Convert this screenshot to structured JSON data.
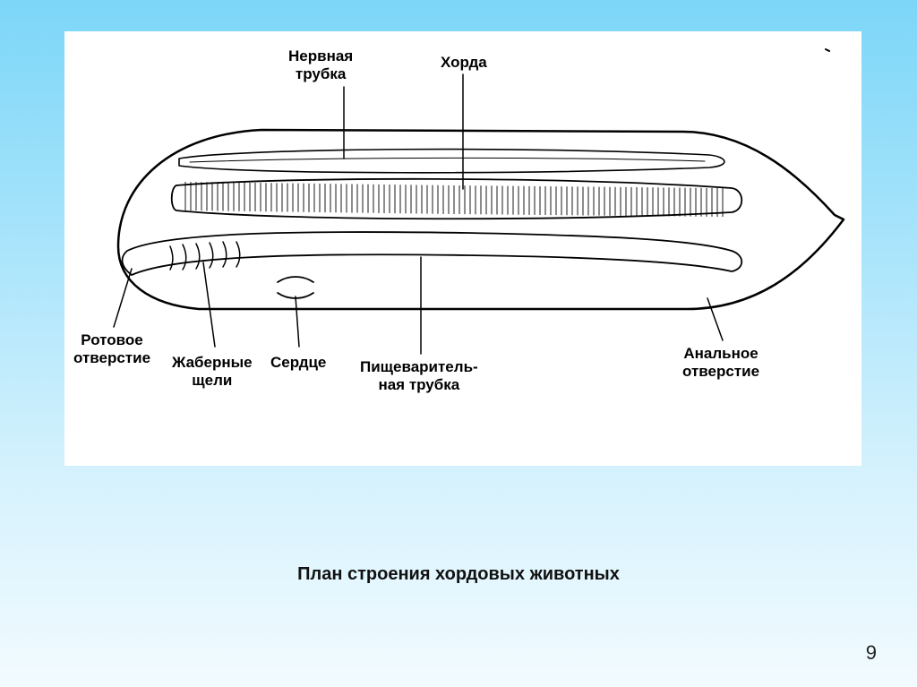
{
  "background": {
    "gradient_from": "#7cd6f8",
    "gradient_to": "#f2fbff"
  },
  "panel": {
    "background_color": "#ffffff"
  },
  "caption": "План строения хордовых животных",
  "page_number": "9",
  "diagram": {
    "type": "labeled-diagram",
    "stroke_color": "#000000",
    "stroke_width_outer": 2.5,
    "stroke_width_inner": 1.4,
    "label_font_size": 17,
    "label_font_weight": "bold"
  },
  "labels": {
    "neural_tube": "Нервная\nтрубка",
    "notochord": "Хорда",
    "mouth": "Ротовое\nотверстие",
    "gill_slits": "Жаберные\nщели",
    "heart": "Сердце",
    "digestive_tube": "Пищеваритель-\nная трубка",
    "anus": "Анальное\nотверстие"
  }
}
